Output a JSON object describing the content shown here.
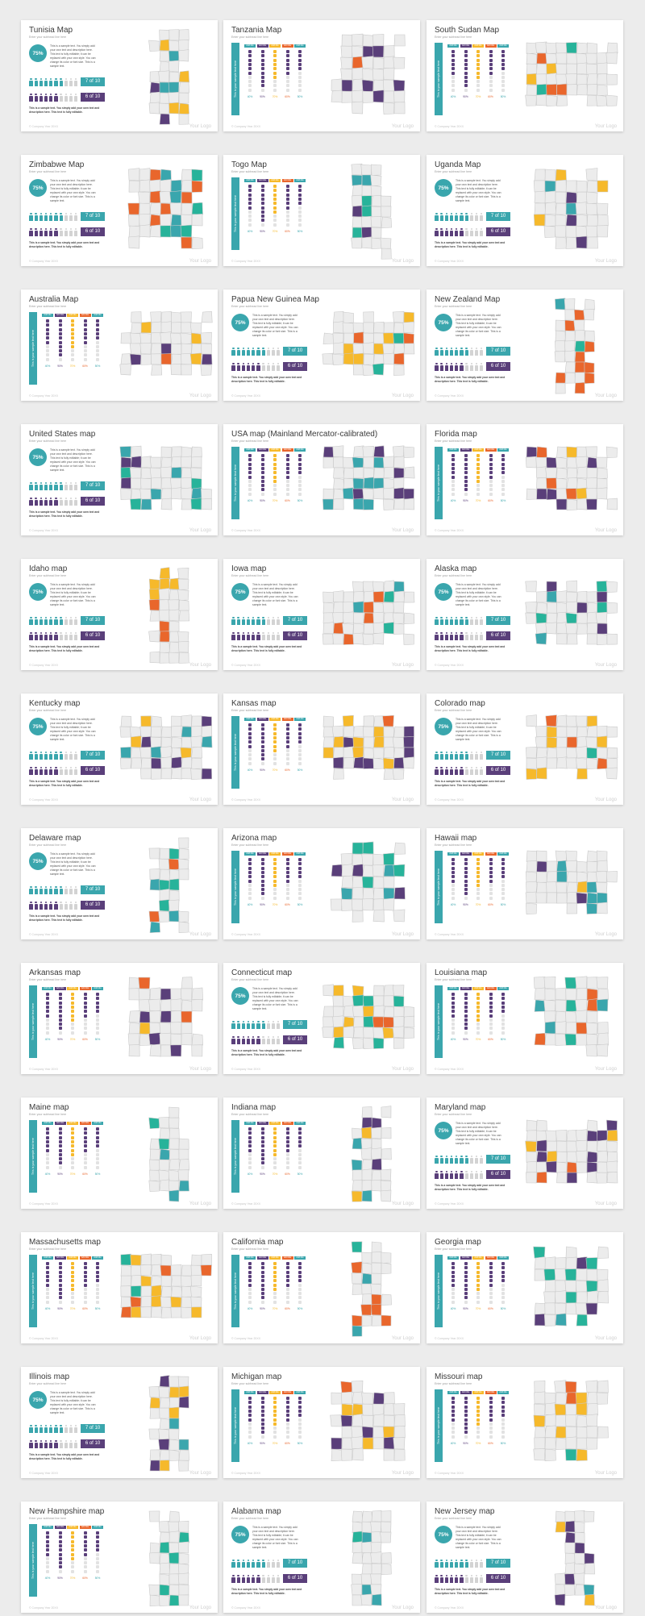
{
  "colors": {
    "teal": "#3aa6ad",
    "purple": "#5a3f7a",
    "yellow": "#f6b92b",
    "orange": "#e9662c",
    "green": "#27b39a",
    "grey": "#d3d3d3",
    "map_fill": "#ececec",
    "map_stroke": "#c9c9c9"
  },
  "common": {
    "subtitle": "Enter your subhead line here",
    "footer": "© Company Year 20XX",
    "logo": "Your Logo",
    "circle_value": "75%",
    "paragraph": "This is a sample text. You simply add your own text and description here. This text is fully editable; it can be replaced with your own style. You can change its color or font size. This is a sample text.",
    "ratio_1": "7 of 10",
    "ratio_2": "6 of 10",
    "note": "This is a sample text. You simply add your own text and description here. This text is fully editable.",
    "vertical_label": "This is your sample text here",
    "column_tags": [
      "Add title",
      "Add title",
      "Add title",
      "Add title",
      "Add title"
    ],
    "column_values": [
      "40%",
      "90%",
      "70%",
      "60%",
      "50%"
    ]
  },
  "slides": [
    {
      "title": "Tunisia Map",
      "layout": "people",
      "shape": "tall"
    },
    {
      "title": "Tanzania Map",
      "layout": "columns",
      "shape": "blob"
    },
    {
      "title": "South Sudan Map",
      "layout": "columns",
      "shape": "wide"
    },
    {
      "title": "Zimbabwe Map",
      "layout": "people",
      "shape": "blob"
    },
    {
      "title": "Togo Map",
      "layout": "columns",
      "shape": "tall"
    },
    {
      "title": "Uganda Map",
      "layout": "people",
      "shape": "blob"
    },
    {
      "title": "Australia Map",
      "layout": "columns",
      "shape": "wide"
    },
    {
      "title": "Papua New Guinea Map",
      "layout": "people",
      "shape": "wide"
    },
    {
      "title": "New Zealand Map",
      "layout": "people",
      "shape": "tall"
    },
    {
      "title": "United States map",
      "layout": "people",
      "shape": "wide"
    },
    {
      "title": "USA map (Mainland Mercator-calibrated)",
      "layout": "columns",
      "shape": "wide"
    },
    {
      "title": "Florida map",
      "layout": "columns",
      "shape": "wide"
    },
    {
      "title": "Idaho map",
      "layout": "people",
      "shape": "tall"
    },
    {
      "title": "Iowa map",
      "layout": "people",
      "shape": "wide"
    },
    {
      "title": "Alaska map",
      "layout": "people",
      "shape": "wide"
    },
    {
      "title": "Kentucky map",
      "layout": "people",
      "shape": "wide"
    },
    {
      "title": "Kansas map",
      "layout": "columns",
      "shape": "wide"
    },
    {
      "title": "Colorado map",
      "layout": "people",
      "shape": "wide"
    },
    {
      "title": "Delaware map",
      "layout": "people",
      "shape": "tall"
    },
    {
      "title": "Arizona map",
      "layout": "columns",
      "shape": "blob"
    },
    {
      "title": "Hawaii map",
      "layout": "columns",
      "shape": "wide"
    },
    {
      "title": "Arkansas map",
      "layout": "columns",
      "shape": "blob"
    },
    {
      "title": "Connecticut map",
      "layout": "people",
      "shape": "wide"
    },
    {
      "title": "Louisiana map",
      "layout": "columns",
      "shape": "blob"
    },
    {
      "title": "Maine map",
      "layout": "columns",
      "shape": "tall"
    },
    {
      "title": "Indiana map",
      "layout": "columns",
      "shape": "tall"
    },
    {
      "title": "Maryland map",
      "layout": "people",
      "shape": "wide"
    },
    {
      "title": "Massachusetts map",
      "layout": "columns",
      "shape": "wide"
    },
    {
      "title": "California map",
      "layout": "columns",
      "shape": "tall"
    },
    {
      "title": "Georgia map",
      "layout": "columns",
      "shape": "blob"
    },
    {
      "title": "Illinois map",
      "layout": "people",
      "shape": "tall"
    },
    {
      "title": "Michigan map",
      "layout": "columns",
      "shape": "blob"
    },
    {
      "title": "Missouri map",
      "layout": "columns",
      "shape": "blob"
    },
    {
      "title": "New Hampshire map",
      "layout": "columns",
      "shape": "tall"
    },
    {
      "title": "Alabama map",
      "layout": "people",
      "shape": "tall"
    },
    {
      "title": "New Jersey map",
      "layout": "people",
      "shape": "tall"
    }
  ]
}
